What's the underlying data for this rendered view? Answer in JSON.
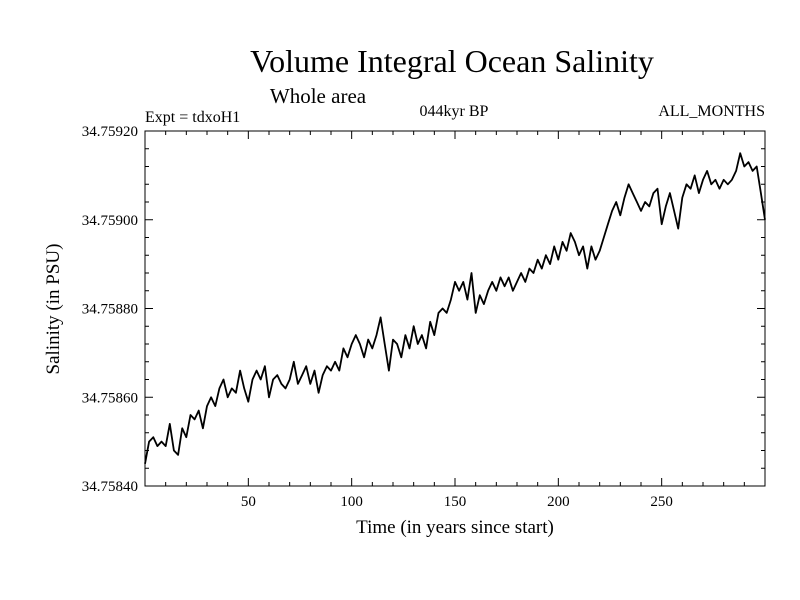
{
  "chart_data": {
    "type": "line",
    "title": "Volume Integral Ocean Salinity",
    "subtitle": "Whole area",
    "experiment": "Expt = tdxoH1",
    "period": "044kyr BP",
    "months": "ALL_MONTHS",
    "xlabel": "Time (in years since start)",
    "ylabel": "Salinity (in PSU)",
    "xlim": [
      0,
      300
    ],
    "ylim": [
      34.7584,
      34.7592
    ],
    "x_ticks": [
      50,
      100,
      150,
      200,
      250
    ],
    "x_tick_labels": [
      "50",
      "100",
      "150",
      "200",
      "250"
    ],
    "y_ticks": [
      34.7584,
      34.7586,
      34.7588,
      34.759,
      34.7592
    ],
    "y_tick_labels": [
      "34.75840",
      "34.75860",
      "34.75880",
      "34.75900",
      "34.75920"
    ],
    "grid": false,
    "series": [
      {
        "name": "Salinity",
        "color": "#000000",
        "x": [
          0,
          2,
          4,
          6,
          8,
          10,
          12,
          14,
          16,
          18,
          20,
          22,
          24,
          26,
          28,
          30,
          32,
          34,
          36,
          38,
          40,
          42,
          44,
          46,
          48,
          50,
          52,
          54,
          56,
          58,
          60,
          62,
          64,
          66,
          68,
          70,
          72,
          74,
          76,
          78,
          80,
          82,
          84,
          86,
          88,
          90,
          92,
          94,
          96,
          98,
          100,
          102,
          104,
          106,
          108,
          110,
          112,
          114,
          116,
          118,
          120,
          122,
          124,
          126,
          128,
          130,
          132,
          134,
          136,
          138,
          140,
          142,
          144,
          146,
          148,
          150,
          152,
          154,
          156,
          158,
          160,
          162,
          164,
          166,
          168,
          170,
          172,
          174,
          176,
          178,
          180,
          182,
          184,
          186,
          188,
          190,
          192,
          194,
          196,
          198,
          200,
          202,
          204,
          206,
          208,
          210,
          212,
          214,
          216,
          218,
          220,
          222,
          224,
          226,
          228,
          230,
          232,
          234,
          236,
          238,
          240,
          242,
          244,
          246,
          248,
          250,
          252,
          254,
          256,
          258,
          260,
          262,
          264,
          266,
          268,
          270,
          272,
          274,
          276,
          278,
          280,
          282,
          284,
          286,
          288,
          290,
          292,
          294,
          296,
          298,
          300
        ],
        "values": [
          34.75845,
          34.7585,
          34.75851,
          34.75849,
          34.7585,
          34.75849,
          34.75854,
          34.75848,
          34.75847,
          34.75853,
          34.75851,
          34.75856,
          34.75855,
          34.75857,
          34.75853,
          34.75858,
          34.7586,
          34.75858,
          34.75862,
          34.75864,
          34.7586,
          34.75862,
          34.75861,
          34.75866,
          34.75862,
          34.75859,
          34.75864,
          34.75866,
          34.75864,
          34.75867,
          34.7586,
          34.75864,
          34.75865,
          34.75863,
          34.75862,
          34.75864,
          34.75868,
          34.75863,
          34.75865,
          34.75867,
          34.75863,
          34.75866,
          34.75861,
          34.75865,
          34.75867,
          34.75866,
          34.75868,
          34.75866,
          34.75871,
          34.75869,
          34.75872,
          34.75874,
          34.75872,
          34.75869,
          34.75873,
          34.75871,
          34.75874,
          34.75878,
          34.75872,
          34.75866,
          34.75873,
          34.75872,
          34.75869,
          34.75874,
          34.75871,
          34.75876,
          34.75872,
          34.75874,
          34.75871,
          34.75877,
          34.75874,
          34.75879,
          34.7588,
          34.75879,
          34.75882,
          34.75886,
          34.75884,
          34.75886,
          34.75882,
          34.75888,
          34.75879,
          34.75883,
          34.75881,
          34.75884,
          34.75886,
          34.75884,
          34.75887,
          34.75885,
          34.75887,
          34.75884,
          34.75886,
          34.75888,
          34.75886,
          34.75889,
          34.75888,
          34.75891,
          34.75889,
          34.75892,
          34.7589,
          34.75894,
          34.75891,
          34.75895,
          34.75893,
          34.75897,
          34.75895,
          34.75892,
          34.75894,
          34.75889,
          34.75894,
          34.75891,
          34.75893,
          34.75896,
          34.75899,
          34.75902,
          34.75904,
          34.75901,
          34.75905,
          34.75908,
          34.75906,
          34.75904,
          34.75902,
          34.75904,
          34.75903,
          34.75906,
          34.75907,
          34.75899,
          34.75903,
          34.75906,
          34.75902,
          34.75898,
          34.75905,
          34.75908,
          34.75907,
          34.7591,
          34.75906,
          34.75909,
          34.75911,
          34.75908,
          34.75909,
          34.75907,
          34.75909,
          34.75908,
          34.75909,
          34.75911,
          34.75915,
          34.75912,
          34.75913,
          34.75911,
          34.75912,
          34.75906,
          34.759
        ]
      }
    ]
  }
}
